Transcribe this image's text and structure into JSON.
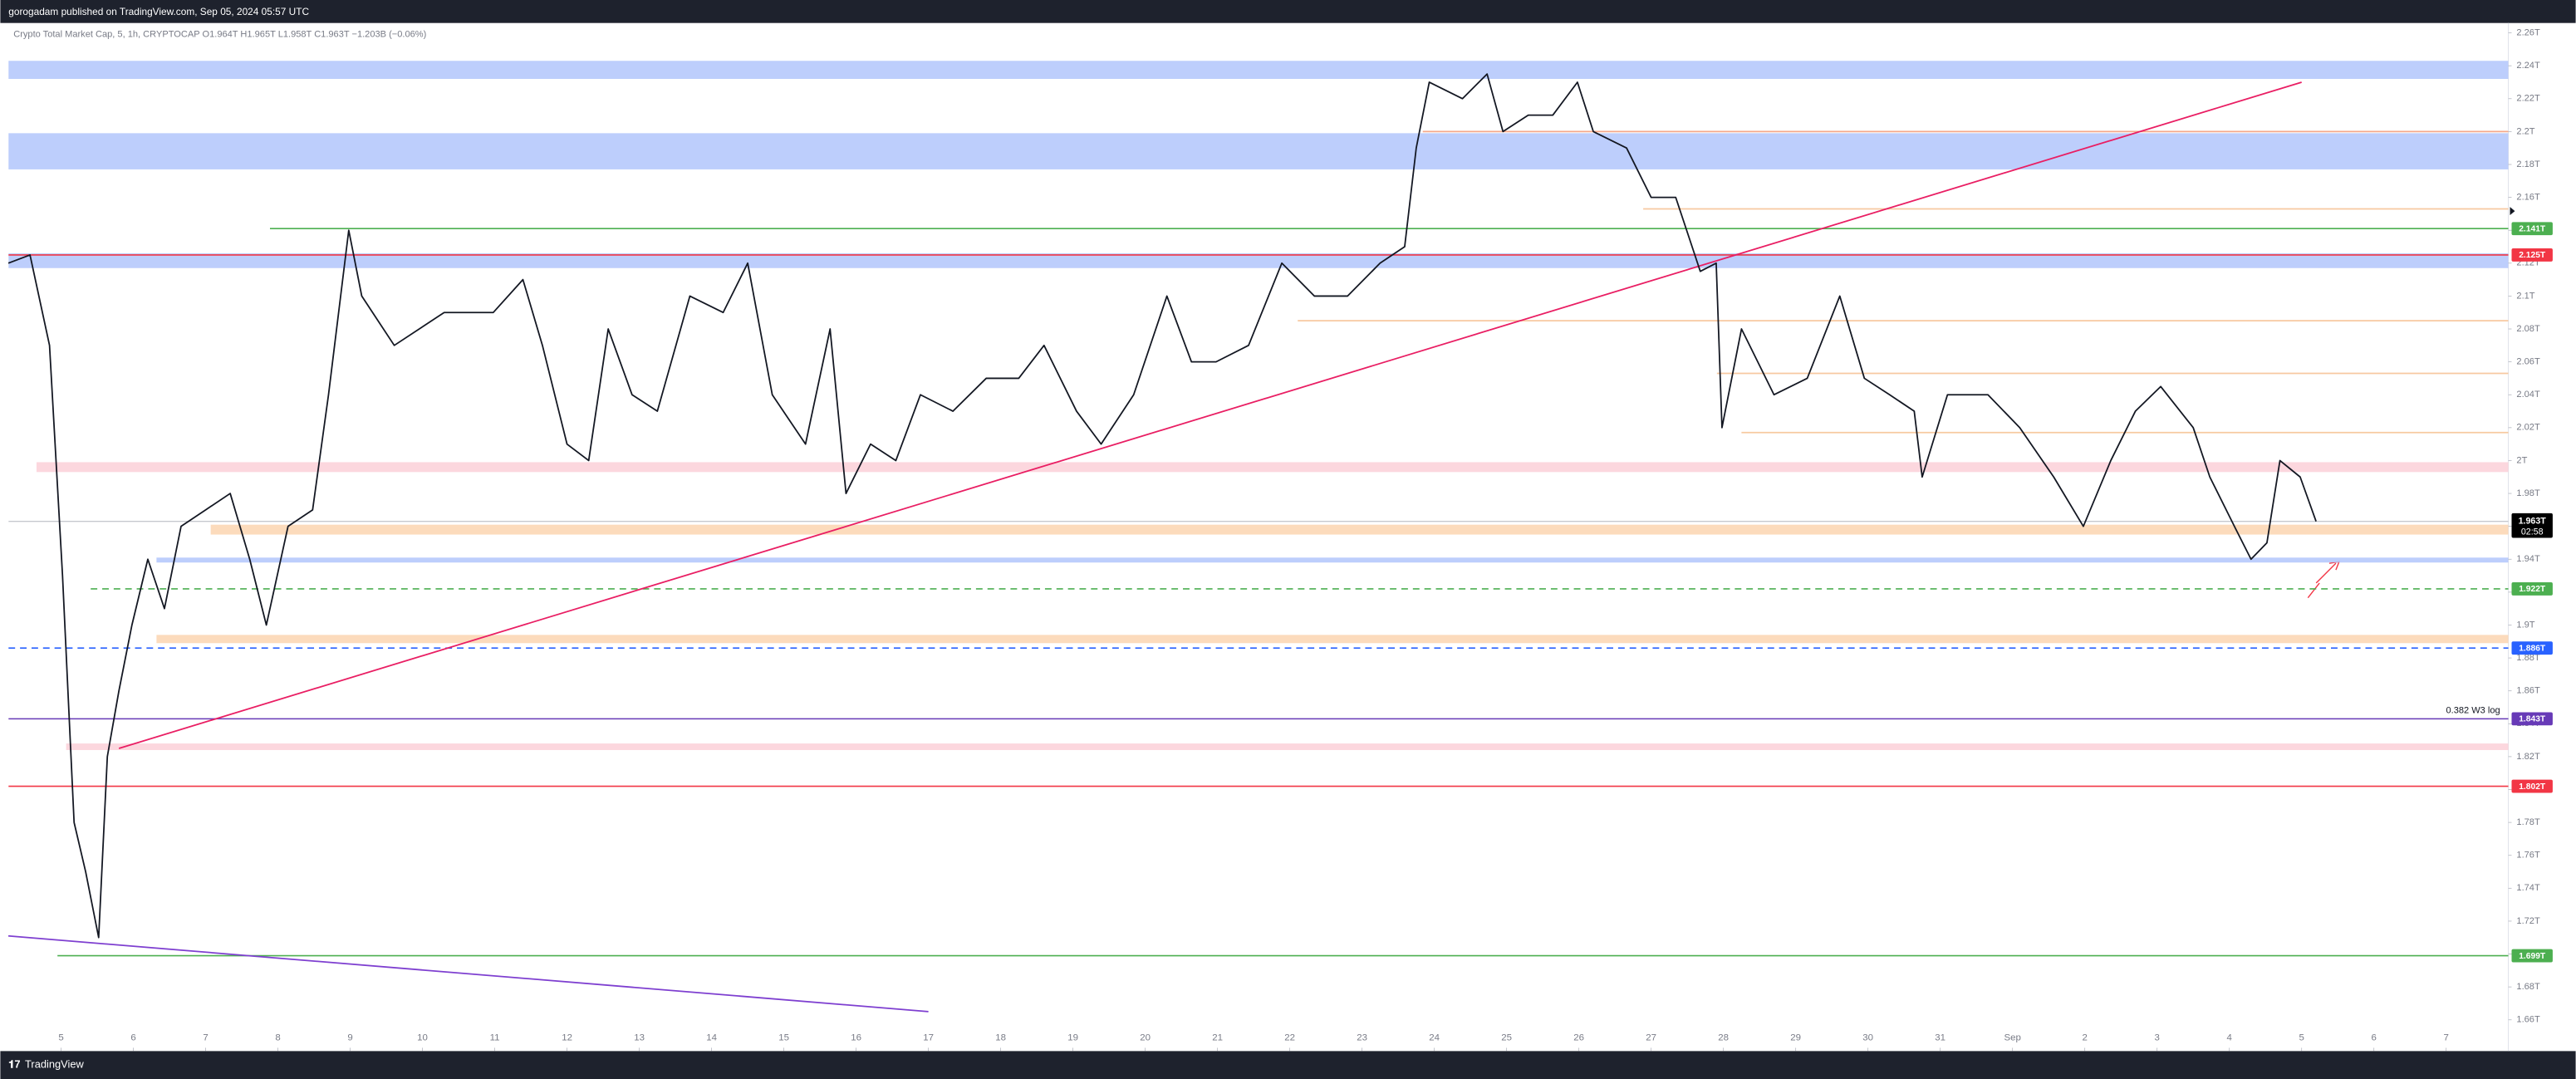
{
  "header": {
    "text": "gorogadam published on TradingView.com, Sep 05, 2024 05:57 UTC"
  },
  "footer": {
    "brand": "TradingView"
  },
  "chart_data": {
    "type": "line",
    "subtitle": "Crypto Total Market Cap, 5, 1h, CRYPTOCAP  O1.964T  H1.965T  L1.958T  C1.963T  −1.203B (−0.06%)",
    "xlim": [
      -0.727,
      33.86
    ],
    "ylim": [
      1.641,
      2.266
    ],
    "xticks": [
      {
        "value": 0,
        "label": "5"
      },
      {
        "value": 1,
        "label": "6"
      },
      {
        "value": 2,
        "label": "7"
      },
      {
        "value": 3,
        "label": "8"
      },
      {
        "value": 4,
        "label": "9"
      },
      {
        "value": 5,
        "label": "10"
      },
      {
        "value": 6,
        "label": "11"
      },
      {
        "value": 7,
        "label": "12"
      },
      {
        "value": 8,
        "label": "13"
      },
      {
        "value": 9,
        "label": "14"
      },
      {
        "value": 10,
        "label": "15"
      },
      {
        "value": 11,
        "label": "16"
      },
      {
        "value": 12,
        "label": "17"
      },
      {
        "value": 13,
        "label": "18"
      },
      {
        "value": 14,
        "label": "19"
      },
      {
        "value": 15,
        "label": "20"
      },
      {
        "value": 16,
        "label": "21"
      },
      {
        "value": 17,
        "label": "22"
      },
      {
        "value": 18,
        "label": "23"
      },
      {
        "value": 19,
        "label": "24"
      },
      {
        "value": 20,
        "label": "25"
      },
      {
        "value": 21,
        "label": "26"
      },
      {
        "value": 22,
        "label": "27"
      },
      {
        "value": 23,
        "label": "28"
      },
      {
        "value": 24,
        "label": "29"
      },
      {
        "value": 25,
        "label": "30"
      },
      {
        "value": 26,
        "label": "31"
      },
      {
        "value": 27,
        "label": "Sep"
      },
      {
        "value": 28,
        "label": "2"
      },
      {
        "value": 29,
        "label": "3"
      },
      {
        "value": 30,
        "label": "4"
      },
      {
        "value": 31,
        "label": "5"
      },
      {
        "value": 32,
        "label": "6"
      },
      {
        "value": 33,
        "label": "7"
      }
    ],
    "yticks": [
      {
        "value": 1.66,
        "label": "1.66T"
      },
      {
        "value": 1.68,
        "label": "1.68T"
      },
      {
        "value": 1.7,
        "label": "1.7T"
      },
      {
        "value": 1.72,
        "label": "1.72T"
      },
      {
        "value": 1.74,
        "label": "1.74T"
      },
      {
        "value": 1.76,
        "label": "1.76T"
      },
      {
        "value": 1.78,
        "label": "1.78T"
      },
      {
        "value": 1.8,
        "label": "1.8T"
      },
      {
        "value": 1.82,
        "label": "1.82T"
      },
      {
        "value": 1.84,
        "label": "1.84T"
      },
      {
        "value": 1.86,
        "label": "1.86T"
      },
      {
        "value": 1.88,
        "label": "1.88T"
      },
      {
        "value": 1.9,
        "label": "1.9T"
      },
      {
        "value": 1.92,
        "label": "1.92T"
      },
      {
        "value": 1.94,
        "label": "1.94T"
      },
      {
        "value": 1.96,
        "label": "1.96T"
      },
      {
        "value": 1.98,
        "label": "1.98T"
      },
      {
        "value": 2.0,
        "label": "2T"
      },
      {
        "value": 2.02,
        "label": "2.02T"
      },
      {
        "value": 2.04,
        "label": "2.04T"
      },
      {
        "value": 2.06,
        "label": "2.06T"
      },
      {
        "value": 2.08,
        "label": "2.08T"
      },
      {
        "value": 2.1,
        "label": "2.1T"
      },
      {
        "value": 2.12,
        "label": "2.12T"
      },
      {
        "value": 2.14,
        "label": "2.14T"
      },
      {
        "value": 2.16,
        "label": "2.16T"
      },
      {
        "value": 2.18,
        "label": "2.18T"
      },
      {
        "value": 2.2,
        "label": "2.2T"
      },
      {
        "value": 2.22,
        "label": "2.22T"
      },
      {
        "value": 2.24,
        "label": "2.24T"
      },
      {
        "value": 2.26,
        "label": "2.26T"
      }
    ],
    "series": [
      {
        "color": "#131722",
        "x": [
          -0.73,
          -0.43,
          -0.16,
          0.02,
          0.18,
          0.34,
          0.52,
          0.64,
          0.8,
          0.98,
          1.2,
          1.43,
          1.66,
          2.0,
          2.34,
          2.61,
          2.84,
          3.14,
          3.48,
          3.7,
          3.98,
          4.16,
          4.61,
          5.3,
          5.98,
          6.39,
          6.66,
          7.0,
          7.3,
          7.57,
          7.9,
          8.25,
          8.7,
          9.16,
          9.5,
          9.84,
          10.3,
          10.64,
          10.86,
          11.2,
          11.55,
          11.89,
          12.34,
          12.8,
          13.25,
          13.6,
          14.05,
          14.39,
          14.84,
          15.3,
          15.64,
          15.98,
          16.43,
          16.89,
          17.34,
          17.8,
          18.25,
          18.59,
          18.75,
          18.93,
          19.39,
          19.73,
          19.95,
          20.3,
          20.64,
          20.98,
          21.2,
          21.66,
          22.0,
          22.34,
          22.68,
          22.9,
          22.98,
          23.25,
          23.7,
          24.16,
          24.61,
          24.95,
          25.3,
          25.64,
          25.75,
          26.1,
          26.66,
          27.1,
          27.57,
          27.98,
          28.36,
          28.7,
          29.05,
          29.5,
          29.73,
          30.07,
          30.3,
          30.52,
          30.7,
          30.98,
          31.2
        ],
        "values": [
          2.12,
          2.125,
          2.07,
          1.93,
          1.78,
          1.75,
          1.71,
          1.82,
          1.86,
          1.9,
          1.94,
          1.91,
          1.96,
          1.97,
          1.98,
          1.94,
          1.9,
          1.96,
          1.97,
          2.04,
          2.14,
          2.1,
          2.07,
          2.09,
          2.09,
          2.11,
          2.07,
          2.01,
          2.0,
          2.08,
          2.04,
          2.03,
          2.1,
          2.09,
          2.12,
          2.04,
          2.01,
          2.08,
          1.98,
          2.01,
          2.0,
          2.04,
          2.03,
          2.05,
          2.05,
          2.07,
          2.03,
          2.01,
          2.04,
          2.1,
          2.06,
          2.06,
          2.07,
          2.12,
          2.1,
          2.1,
          2.12,
          2.13,
          2.19,
          2.23,
          2.22,
          2.235,
          2.2,
          2.21,
          2.21,
          2.23,
          2.2,
          2.19,
          2.16,
          2.16,
          2.115,
          2.12,
          2.02,
          2.08,
          2.04,
          2.05,
          2.1,
          2.05,
          2.04,
          2.03,
          1.99,
          2.04,
          2.04,
          2.02,
          1.99,
          1.96,
          2.0,
          2.03,
          2.045,
          2.02,
          1.99,
          1.96,
          1.94,
          1.95,
          2.0,
          1.99,
          1.963
        ]
      }
    ],
    "zones": [
      {
        "y": [
          2.232,
          2.243
        ],
        "x0": -0.727,
        "color": "#b2c5fb"
      },
      {
        "y": [
          2.177,
          2.199
        ],
        "x0": -0.727,
        "color": "#b2c5fb"
      },
      {
        "y": [
          2.117,
          2.126
        ],
        "x0": -0.727,
        "color": "#b2c5fb"
      },
      {
        "y": [
          1.993,
          1.999
        ],
        "x0": -0.34,
        "color": "#fcd0d8"
      },
      {
        "y": [
          1.955,
          1.961
        ],
        "x0": 2.07,
        "color": "#fcd5b0"
      },
      {
        "y": [
          1.938,
          1.941
        ],
        "x0": 1.32,
        "color": "#b2c5fb"
      },
      {
        "y": [
          1.889,
          1.894
        ],
        "x0": 1.32,
        "color": "#fcd5b0"
      },
      {
        "y": [
          1.824,
          1.828
        ],
        "x0": 0.07,
        "color": "#fcd0d8"
      }
    ],
    "levels": [
      {
        "value": 2.2,
        "x0": 18.84,
        "color": "#f5a88a"
      },
      {
        "value": 2.153,
        "x0": 21.89,
        "color": "#f7c9a0"
      },
      {
        "value": 2.085,
        "x0": 17.11,
        "color": "#f7c9a0"
      },
      {
        "value": 2.053,
        "x0": 22.91,
        "color": "#f7c9a0"
      },
      {
        "value": 2.017,
        "x0": 23.25,
        "color": "#f7c9a0"
      },
      {
        "value": 2.141,
        "label": "2.141T",
        "x0": 2.89,
        "color": "#4caf50"
      },
      {
        "value": 2.125,
        "label": "2.125T",
        "x0": -0.727,
        "color": "#f23645"
      },
      {
        "value": 1.922,
        "label": "1.922T",
        "x0": 0.41,
        "color": "#4caf50",
        "dashed": true
      },
      {
        "value": 1.886,
        "label": "1.886T",
        "x0": -0.727,
        "color": "#2962ff",
        "dashed": true
      },
      {
        "value": 1.843,
        "label": "1.843T",
        "x0": -0.727,
        "color": "#673ab7",
        "note": "0.382 W3 log"
      },
      {
        "value": 1.802,
        "label": "1.802T",
        "x0": -0.727,
        "color": "#f23645"
      },
      {
        "value": 1.699,
        "label": "1.699T",
        "x0": -0.05,
        "color": "#4caf50"
      }
    ],
    "trendlines": [
      {
        "x": [
          0.8,
          31.0
        ],
        "y": [
          1.825,
          2.23
        ],
        "color": "#e91e63"
      },
      {
        "x": [
          -0.73,
          12.0
        ],
        "y": [
          1.711,
          1.665
        ],
        "color": "#7e3fd0"
      }
    ],
    "last": {
      "value": 1.963,
      "label": "1.963T",
      "countdown": "02:58"
    }
  }
}
